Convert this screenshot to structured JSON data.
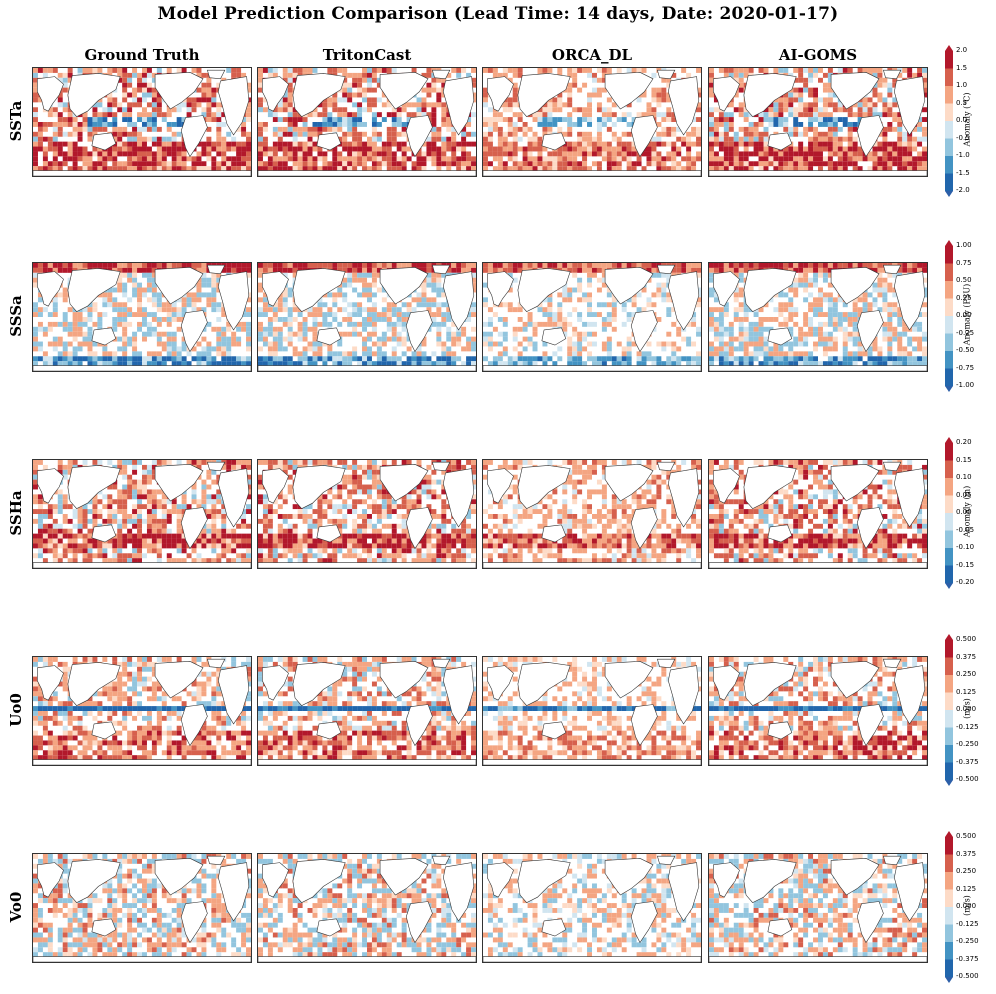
{
  "title": "Model Prediction Comparison (Lead Time: 14 days, Date: 2020-01-17)",
  "columns": [
    "Ground Truth",
    "TritonCast",
    "ORCA_DL",
    "AI-GOMS"
  ],
  "rows": [
    "SSTa",
    "SSSa",
    "SSHa",
    "Uo0",
    "Vo0"
  ],
  "colorbars": [
    {
      "label": "Anomaly (°C)",
      "ticks": [
        "2.0",
        "1.5",
        "1.0",
        "0.5",
        "0.0",
        "-0.5",
        "-1.0",
        "-1.5",
        "-2.0"
      ]
    },
    {
      "label": "Anomaly (PSU)",
      "ticks": [
        "1.00",
        "0.75",
        "0.50",
        "0.25",
        "0.00",
        "-0.25",
        "-0.50",
        "-0.75",
        "-1.00"
      ]
    },
    {
      "label": "Anomaly (m)",
      "ticks": [
        "0.20",
        "0.15",
        "0.10",
        "0.05",
        "0.00",
        "-0.05",
        "-0.10",
        "-0.15",
        "-0.20"
      ]
    },
    {
      "label": "(m/s)",
      "ticks": [
        "0.500",
        "0.375",
        "0.250",
        "0.125",
        "0.000",
        "-0.125",
        "-0.250",
        "-0.375",
        "-0.500"
      ]
    },
    {
      "label": "(m/s)",
      "ticks": [
        "0.500",
        "0.375",
        "0.250",
        "0.125",
        "0.000",
        "-0.125",
        "-0.250",
        "-0.375",
        "-0.500"
      ]
    }
  ],
  "colors": {
    "levels": [
      "#2166ac",
      "#4393c3",
      "#92c5de",
      "#d1e5f0",
      "#fddbc7",
      "#f4a582",
      "#d6604d",
      "#b2182b"
    ],
    "extend_low": "#2c5fa8",
    "extend_high": "#b2182b"
  },
  "chart_data": {
    "type": "heatmap",
    "title": "Model Prediction Comparison (Lead Time: 14 days, Date: 2020-01-17)",
    "columns": [
      "Ground Truth",
      "TritonCast",
      "ORCA_DL",
      "AI-GOMS"
    ],
    "variables": [
      {
        "name": "SSTa",
        "unit": "Anomaly (°C)",
        "range": [
          -2.0,
          2.0
        ],
        "levels": 8,
        "extend": "both"
      },
      {
        "name": "SSSa",
        "unit": "Anomaly (PSU)",
        "range": [
          -1.0,
          1.0
        ],
        "levels": 8,
        "extend": "both"
      },
      {
        "name": "SSHa",
        "unit": "Anomaly (m)",
        "range": [
          -0.2,
          0.2
        ],
        "levels": 8,
        "extend": "both"
      },
      {
        "name": "Uo0",
        "unit": "(m/s)",
        "range": [
          -0.5,
          0.5
        ],
        "levels": 8,
        "extend": "both"
      },
      {
        "name": "Vo0",
        "unit": "(m/s)",
        "range": [
          -0.5,
          0.5
        ],
        "levels": 8,
        "extend": "both"
      }
    ],
    "grid": false
  }
}
